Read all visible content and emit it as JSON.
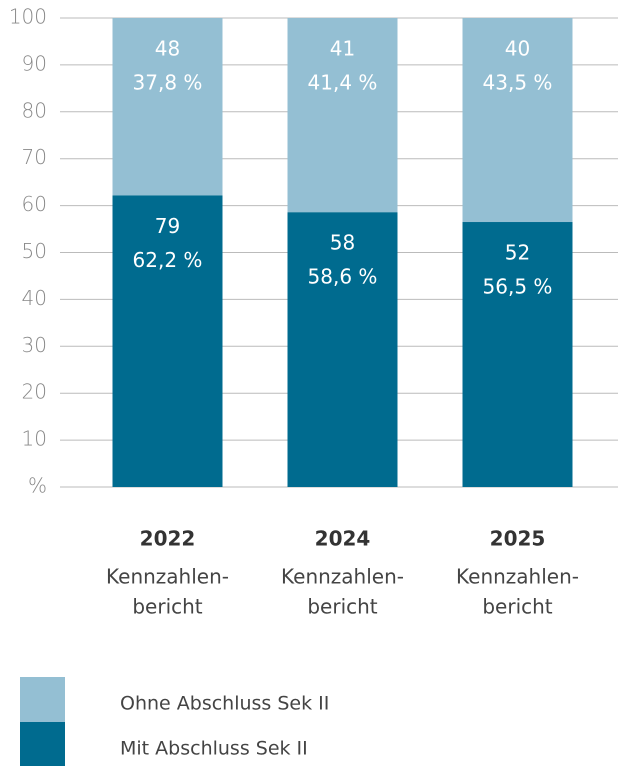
{
  "chart_data": {
    "type": "stacked_bar",
    "categories": [
      "2022",
      "2024",
      "2025"
    ],
    "category_notes": [
      [
        "Kennzahlen-",
        "bericht"
      ],
      [
        "Kennzahlen-",
        "bericht"
      ],
      [
        "Kennzahlen-",
        "bericht"
      ]
    ],
    "series": [
      {
        "name": "Ohne Abschluss Sek II",
        "color": "#94bfd3",
        "values": [
          37.8,
          41.4,
          43.5
        ],
        "value_labels": [
          "37,8 %",
          "41,4 %",
          "43,5 %"
        ],
        "counts": [
          48,
          41,
          40
        ]
      },
      {
        "name": "Mit Abschluss Sek II",
        "color": "#006b8f",
        "values": [
          62.2,
          58.6,
          56.5
        ],
        "value_labels": [
          "62,2 %",
          "58,6 %",
          "56,5 %"
        ],
        "counts": [
          79,
          58,
          52
        ]
      }
    ],
    "ylim": [
      0,
      100
    ],
    "yticks": [
      {
        "value": 0,
        "label": "%"
      },
      10,
      20,
      30,
      40,
      50,
      60,
      70,
      80,
      90,
      100
    ],
    "grid": true
  }
}
